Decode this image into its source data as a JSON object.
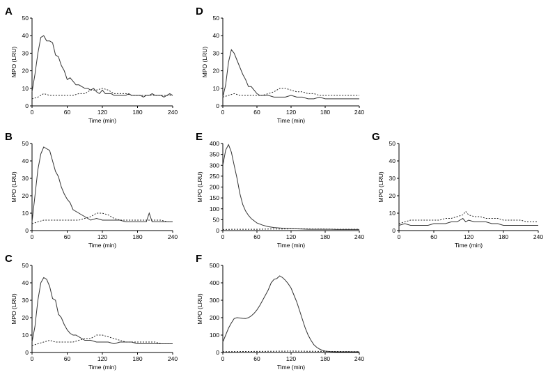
{
  "chart_data": [
    {
      "panel": "A",
      "type": "line",
      "xlabel": "Time (min)",
      "ylabel": "MPO (LRU)",
      "xlim": [
        0,
        240
      ],
      "ylim": [
        0,
        50
      ],
      "xticks": [
        0,
        60,
        120,
        180,
        240
      ],
      "yticks": [
        0,
        10,
        20,
        30,
        40,
        50
      ],
      "series": [
        {
          "name": "solid",
          "style": "solid",
          "x": [
            0,
            5,
            10,
            15,
            20,
            25,
            30,
            35,
            40,
            45,
            50,
            55,
            60,
            65,
            70,
            75,
            80,
            85,
            90,
            95,
            100,
            105,
            110,
            115,
            120,
            125,
            130,
            135,
            140,
            145,
            150,
            155,
            160,
            165,
            170,
            175,
            180,
            185,
            190,
            195,
            200,
            205,
            210,
            215,
            220,
            225,
            230,
            235,
            240
          ],
          "y": [
            8,
            18,
            30,
            39,
            40,
            37,
            37,
            36,
            29,
            28,
            23,
            20,
            15,
            16,
            14,
            12,
            12,
            11,
            10,
            10,
            9,
            10,
            8,
            7,
            9,
            7,
            7,
            7,
            6,
            6,
            6,
            6,
            6,
            7,
            6,
            6,
            6,
            6,
            5,
            6,
            6,
            7,
            6,
            6,
            6,
            5,
            6,
            7,
            6
          ]
        },
        {
          "name": "dashed",
          "style": "dashed",
          "x": [
            0,
            10,
            20,
            30,
            40,
            50,
            60,
            70,
            80,
            90,
            100,
            110,
            120,
            130,
            140,
            150,
            160,
            170,
            180,
            190,
            200,
            210,
            220,
            230,
            240
          ],
          "y": [
            4,
            5,
            7,
            6,
            6,
            6,
            6,
            6,
            7,
            7,
            9,
            9,
            10,
            9,
            7,
            7,
            7,
            6,
            6,
            6,
            6,
            6,
            6,
            6,
            6
          ]
        }
      ]
    },
    {
      "panel": "B",
      "type": "line",
      "xlabel": "Time (min)",
      "ylabel": "MPO (LRU)",
      "xlim": [
        0,
        240
      ],
      "ylim": [
        0,
        50
      ],
      "xticks": [
        0,
        60,
        120,
        180,
        240
      ],
      "yticks": [
        0,
        10,
        20,
        30,
        40,
        50
      ],
      "series": [
        {
          "name": "solid",
          "style": "solid",
          "x": [
            0,
            5,
            10,
            15,
            20,
            25,
            30,
            35,
            40,
            45,
            50,
            55,
            60,
            65,
            70,
            75,
            80,
            85,
            90,
            95,
            100,
            110,
            120,
            130,
            140,
            150,
            160,
            170,
            180,
            190,
            195,
            200,
            205,
            210,
            220,
            230,
            240
          ],
          "y": [
            5,
            20,
            35,
            44,
            48,
            47,
            46,
            40,
            34,
            31,
            25,
            21,
            18,
            16,
            12,
            11,
            10,
            9,
            8,
            7,
            6,
            7,
            6,
            6,
            6,
            6,
            5,
            5,
            5,
            5,
            5,
            10,
            5,
            5,
            5,
            5,
            5
          ]
        },
        {
          "name": "dashed",
          "style": "dashed",
          "x": [
            0,
            10,
            20,
            30,
            40,
            50,
            60,
            70,
            80,
            90,
            100,
            110,
            120,
            130,
            140,
            150,
            160,
            170,
            180,
            190,
            200,
            210,
            220,
            230,
            240
          ],
          "y": [
            4,
            5,
            6,
            6,
            6,
            6,
            6,
            6,
            6,
            7,
            8,
            10,
            10,
            9,
            7,
            6,
            6,
            6,
            6,
            6,
            6,
            6,
            6,
            5,
            5
          ]
        }
      ]
    },
    {
      "panel": "C",
      "type": "line",
      "xlabel": "Time (min)",
      "ylabel": "MPO (LRU)",
      "xlim": [
        0,
        240
      ],
      "ylim": [
        0,
        50
      ],
      "xticks": [
        0,
        60,
        120,
        180,
        240
      ],
      "yticks": [
        0,
        10,
        20,
        30,
        40,
        50
      ],
      "series": [
        {
          "name": "solid",
          "style": "solid",
          "x": [
            0,
            5,
            10,
            15,
            20,
            25,
            30,
            35,
            40,
            45,
            50,
            55,
            60,
            65,
            70,
            75,
            80,
            85,
            90,
            95,
            100,
            110,
            120,
            130,
            140,
            150,
            160,
            170,
            180,
            190,
            200,
            210,
            220,
            230,
            240
          ],
          "y": [
            6,
            15,
            30,
            40,
            43,
            42,
            38,
            31,
            30,
            22,
            20,
            16,
            13,
            11,
            10,
            10,
            9,
            8,
            7,
            7,
            7,
            6,
            6,
            6,
            5,
            6,
            6,
            6,
            5,
            5,
            5,
            5,
            5,
            5,
            5
          ]
        },
        {
          "name": "dashed",
          "style": "dashed",
          "x": [
            0,
            10,
            20,
            30,
            40,
            50,
            60,
            70,
            80,
            90,
            100,
            110,
            120,
            130,
            140,
            150,
            160,
            170,
            180,
            190,
            200,
            210,
            220,
            230,
            240
          ],
          "y": [
            4,
            5,
            6,
            7,
            6,
            6,
            6,
            6,
            7,
            8,
            8,
            10,
            10,
            9,
            8,
            7,
            6,
            6,
            6,
            6,
            6,
            6,
            5,
            5,
            5
          ]
        }
      ]
    },
    {
      "panel": "D",
      "type": "line",
      "xlabel": "Time (min)",
      "ylabel": "MPO (LRU)",
      "xlim": [
        0,
        240
      ],
      "ylim": [
        0,
        50
      ],
      "xticks": [
        0,
        60,
        120,
        180,
        240
      ],
      "yticks": [
        0,
        10,
        20,
        30,
        40,
        50
      ],
      "series": [
        {
          "name": "solid",
          "style": "solid",
          "x": [
            0,
            5,
            10,
            15,
            20,
            25,
            30,
            35,
            40,
            45,
            50,
            55,
            60,
            65,
            70,
            80,
            90,
            100,
            110,
            120,
            130,
            140,
            150,
            160,
            170,
            180,
            190,
            200,
            210,
            220,
            230,
            240
          ],
          "y": [
            5,
            12,
            25,
            32,
            30,
            26,
            22,
            18,
            15,
            11,
            11,
            9,
            7,
            6,
            6,
            6,
            5,
            5,
            5,
            6,
            5,
            5,
            4,
            4,
            5,
            4,
            4,
            4,
            4,
            4,
            4,
            4
          ]
        },
        {
          "name": "dashed",
          "style": "dashed",
          "x": [
            0,
            10,
            20,
            30,
            40,
            50,
            60,
            70,
            80,
            90,
            100,
            110,
            120,
            130,
            140,
            150,
            160,
            170,
            180,
            190,
            200,
            210,
            220,
            230,
            240
          ],
          "y": [
            5,
            6,
            7,
            6,
            6,
            6,
            6,
            6,
            7,
            8,
            10,
            10,
            9,
            8,
            8,
            7,
            7,
            6,
            6,
            6,
            6,
            6,
            6,
            6,
            6
          ]
        }
      ]
    },
    {
      "panel": "E",
      "type": "line",
      "xlabel": "Time (min)",
      "ylabel": "MPO (LRU)",
      "xlim": [
        0,
        240
      ],
      "ylim": [
        0,
        400
      ],
      "xticks": [
        0,
        60,
        120,
        180,
        240
      ],
      "yticks": [
        0,
        50,
        100,
        150,
        200,
        250,
        300,
        350,
        400
      ],
      "series": [
        {
          "name": "solid",
          "style": "solid",
          "x": [
            0,
            5,
            10,
            15,
            20,
            25,
            30,
            35,
            40,
            45,
            50,
            55,
            60,
            70,
            80,
            90,
            100,
            110,
            120,
            130,
            140,
            150,
            160,
            170,
            180,
            190,
            200,
            210,
            220,
            230,
            240
          ],
          "y": [
            300,
            370,
            395,
            360,
            300,
            240,
            170,
            120,
            90,
            70,
            55,
            45,
            35,
            25,
            18,
            14,
            12,
            10,
            9,
            8,
            7,
            6,
            6,
            6,
            6,
            6,
            5,
            5,
            5,
            5,
            5
          ]
        },
        {
          "name": "dashed",
          "style": "dashed",
          "x": [
            0,
            20,
            40,
            60,
            80,
            100,
            120,
            140,
            160,
            180,
            200,
            220,
            240
          ],
          "y": [
            5,
            6,
            6,
            6,
            7,
            7,
            8,
            8,
            7,
            7,
            6,
            6,
            6
          ]
        }
      ]
    },
    {
      "panel": "F",
      "type": "line",
      "xlabel": "Time (min)",
      "ylabel": "MPO (LRU)",
      "xlim": [
        0,
        240
      ],
      "ylim": [
        0,
        500
      ],
      "xticks": [
        0,
        60,
        120,
        180,
        240
      ],
      "yticks": [
        0,
        100,
        200,
        300,
        400,
        500
      ],
      "series": [
        {
          "name": "solid",
          "style": "solid",
          "x": [
            0,
            5,
            10,
            15,
            20,
            25,
            30,
            35,
            40,
            45,
            50,
            55,
            60,
            65,
            70,
            75,
            80,
            85,
            90,
            95,
            100,
            105,
            110,
            115,
            120,
            125,
            130,
            135,
            140,
            145,
            150,
            155,
            160,
            165,
            170,
            175,
            180,
            190,
            200,
            210,
            220,
            230,
            240
          ],
          "y": [
            60,
            100,
            140,
            170,
            195,
            200,
            198,
            196,
            195,
            200,
            210,
            225,
            245,
            270,
            300,
            330,
            360,
            400,
            420,
            425,
            440,
            430,
            415,
            395,
            370,
            330,
            290,
            240,
            190,
            140,
            100,
            70,
            45,
            30,
            20,
            12,
            8,
            5,
            4,
            4,
            4,
            4,
            4
          ]
        },
        {
          "name": "dashed",
          "style": "dashed",
          "x": [
            0,
            40,
            80,
            120,
            160,
            200,
            240
          ],
          "y": [
            5,
            6,
            7,
            8,
            7,
            6,
            5
          ]
        }
      ]
    },
    {
      "panel": "G",
      "type": "line",
      "xlabel": "Time (min)",
      "ylabel": "MPO (LRU)",
      "xlim": [
        0,
        240
      ],
      "ylim": [
        0,
        50
      ],
      "xticks": [
        0,
        60,
        120,
        180,
        240
      ],
      "yticks": [
        0,
        10,
        20,
        30,
        40,
        50
      ],
      "series": [
        {
          "name": "solid",
          "style": "solid",
          "x": [
            0,
            10,
            20,
            30,
            40,
            50,
            60,
            70,
            80,
            90,
            100,
            110,
            115,
            120,
            130,
            140,
            150,
            160,
            170,
            180,
            190,
            200,
            210,
            220,
            230,
            240
          ],
          "y": [
            3,
            4,
            3,
            3,
            3,
            3,
            4,
            4,
            4,
            5,
            5,
            7,
            5,
            6,
            5,
            5,
            5,
            4,
            4,
            3,
            3,
            3,
            3,
            3,
            3,
            3
          ]
        },
        {
          "name": "dashed",
          "style": "dashed",
          "x": [
            0,
            10,
            20,
            30,
            40,
            50,
            60,
            70,
            80,
            90,
            100,
            110,
            115,
            120,
            130,
            140,
            150,
            160,
            170,
            180,
            190,
            200,
            210,
            220,
            230,
            240
          ],
          "y": [
            4,
            5,
            6,
            6,
            6,
            6,
            6,
            6,
            7,
            7,
            8,
            9,
            11,
            9,
            8,
            8,
            7,
            7,
            7,
            6,
            6,
            6,
            6,
            5,
            5,
            5
          ]
        }
      ]
    }
  ]
}
